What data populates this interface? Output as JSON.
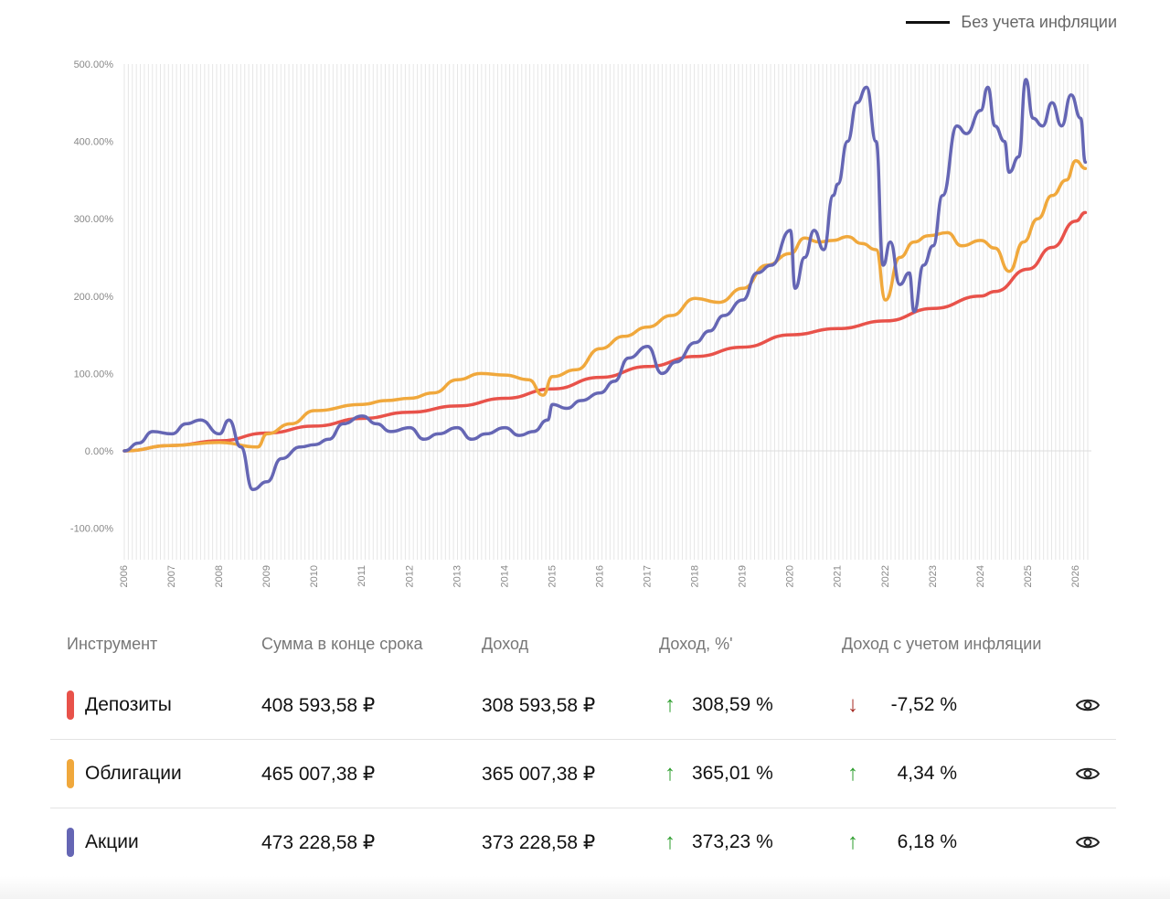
{
  "legend": {
    "label": "Без учета инфляции",
    "color": "#111111"
  },
  "chart_data": {
    "type": "line",
    "x_ticks": [
      "2006",
      "2007",
      "2008",
      "2009",
      "2010",
      "2011",
      "2012",
      "2013",
      "2014",
      "2015",
      "2016",
      "2017",
      "2018",
      "2019",
      "2020",
      "2021",
      "2022",
      "2023",
      "2024",
      "2025",
      "2026"
    ],
    "y_ticks": [
      "500.00%",
      "400.00%",
      "300.00%",
      "200.00%",
      "100.00%",
      "0.00%",
      "-100.00%"
    ],
    "xlim": [
      2006.0,
      2026.25
    ],
    "ylim": [
      -130,
      500
    ],
    "grid": "vertical",
    "series": [
      {
        "name": "Депозиты",
        "color": "#e8524a",
        "points": [
          [
            2006.0,
            0
          ],
          [
            2007.0,
            7
          ],
          [
            2008.0,
            13
          ],
          [
            2009.0,
            23
          ],
          [
            2010.0,
            32
          ],
          [
            2011.0,
            42
          ],
          [
            2012.0,
            50
          ],
          [
            2013.0,
            58
          ],
          [
            2014.0,
            68
          ],
          [
            2015.0,
            80
          ],
          [
            2016.0,
            95
          ],
          [
            2017.0,
            109
          ],
          [
            2018.0,
            122
          ],
          [
            2019.0,
            134
          ],
          [
            2020.0,
            150
          ],
          [
            2021.0,
            158
          ],
          [
            2022.0,
            168
          ],
          [
            2023.0,
            184
          ],
          [
            2024.0,
            200
          ],
          [
            2024.3,
            206
          ],
          [
            2025.0,
            235
          ],
          [
            2025.5,
            263
          ],
          [
            2026.0,
            297
          ],
          [
            2026.2,
            308
          ]
        ]
      },
      {
        "name": "Облигации",
        "color": "#f0a83c",
        "points": [
          [
            2006.0,
            0
          ],
          [
            2007.0,
            7
          ],
          [
            2008.0,
            11
          ],
          [
            2008.8,
            5
          ],
          [
            2009.0,
            22
          ],
          [
            2009.5,
            35
          ],
          [
            2010.0,
            52
          ],
          [
            2011.0,
            60
          ],
          [
            2011.5,
            65
          ],
          [
            2012.0,
            68
          ],
          [
            2012.5,
            75
          ],
          [
            2013.0,
            92
          ],
          [
            2013.5,
            100
          ],
          [
            2014.0,
            98
          ],
          [
            2014.5,
            92
          ],
          [
            2014.8,
            72
          ],
          [
            2015.0,
            96
          ],
          [
            2015.5,
            105
          ],
          [
            2016.0,
            132
          ],
          [
            2016.5,
            148
          ],
          [
            2017.0,
            160
          ],
          [
            2017.5,
            175
          ],
          [
            2018.0,
            197
          ],
          [
            2018.5,
            192
          ],
          [
            2019.0,
            210
          ],
          [
            2019.5,
            240
          ],
          [
            2020.0,
            255
          ],
          [
            2020.3,
            275
          ],
          [
            2020.6,
            270
          ],
          [
            2020.9,
            272
          ],
          [
            2021.2,
            277
          ],
          [
            2021.5,
            268
          ],
          [
            2021.8,
            260
          ],
          [
            2022.0,
            195
          ],
          [
            2022.3,
            250
          ],
          [
            2022.6,
            270
          ],
          [
            2022.9,
            278
          ],
          [
            2023.3,
            282
          ],
          [
            2023.6,
            265
          ],
          [
            2024.0,
            272
          ],
          [
            2024.3,
            262
          ],
          [
            2024.6,
            232
          ],
          [
            2024.9,
            270
          ],
          [
            2025.2,
            300
          ],
          [
            2025.5,
            330
          ],
          [
            2025.8,
            350
          ],
          [
            2026.0,
            375
          ],
          [
            2026.2,
            365
          ]
        ]
      },
      {
        "name": "Акции",
        "color": "#6566b4",
        "points": [
          [
            2006.0,
            0
          ],
          [
            2006.3,
            10
          ],
          [
            2006.6,
            25
          ],
          [
            2007.0,
            22
          ],
          [
            2007.3,
            35
          ],
          [
            2007.6,
            40
          ],
          [
            2008.0,
            22
          ],
          [
            2008.2,
            40
          ],
          [
            2008.45,
            5
          ],
          [
            2008.7,
            -50
          ],
          [
            2009.0,
            -40
          ],
          [
            2009.3,
            -10
          ],
          [
            2009.7,
            5
          ],
          [
            2010.0,
            8
          ],
          [
            2010.3,
            15
          ],
          [
            2010.6,
            35
          ],
          [
            2011.0,
            45
          ],
          [
            2011.3,
            35
          ],
          [
            2011.6,
            25
          ],
          [
            2012.0,
            30
          ],
          [
            2012.3,
            15
          ],
          [
            2012.6,
            22
          ],
          [
            2013.0,
            30
          ],
          [
            2013.3,
            15
          ],
          [
            2013.6,
            22
          ],
          [
            2014.0,
            30
          ],
          [
            2014.3,
            20
          ],
          [
            2014.6,
            25
          ],
          [
            2014.9,
            40
          ],
          [
            2015.0,
            60
          ],
          [
            2015.3,
            55
          ],
          [
            2015.6,
            65
          ],
          [
            2016.0,
            75
          ],
          [
            2016.3,
            90
          ],
          [
            2016.6,
            120
          ],
          [
            2017.0,
            135
          ],
          [
            2017.3,
            100
          ],
          [
            2017.6,
            115
          ],
          [
            2018.0,
            140
          ],
          [
            2018.3,
            155
          ],
          [
            2018.6,
            175
          ],
          [
            2019.0,
            195
          ],
          [
            2019.3,
            230
          ],
          [
            2019.6,
            240
          ],
          [
            2020.0,
            285
          ],
          [
            2020.1,
            210
          ],
          [
            2020.3,
            250
          ],
          [
            2020.5,
            285
          ],
          [
            2020.7,
            260
          ],
          [
            2020.9,
            330
          ],
          [
            2021.0,
            345
          ],
          [
            2021.2,
            400
          ],
          [
            2021.4,
            450
          ],
          [
            2021.6,
            470
          ],
          [
            2021.8,
            400
          ],
          [
            2021.95,
            240
          ],
          [
            2022.1,
            270
          ],
          [
            2022.3,
            215
          ],
          [
            2022.5,
            230
          ],
          [
            2022.6,
            180
          ],
          [
            2022.8,
            240
          ],
          [
            2023.0,
            265
          ],
          [
            2023.2,
            330
          ],
          [
            2023.5,
            420
          ],
          [
            2023.7,
            410
          ],
          [
            2024.0,
            440
          ],
          [
            2024.15,
            470
          ],
          [
            2024.3,
            420
          ],
          [
            2024.5,
            400
          ],
          [
            2024.6,
            360
          ],
          [
            2024.8,
            380
          ],
          [
            2024.95,
            480
          ],
          [
            2025.1,
            430
          ],
          [
            2025.3,
            420
          ],
          [
            2025.5,
            450
          ],
          [
            2025.7,
            420
          ],
          [
            2025.9,
            460
          ],
          [
            2026.1,
            430
          ],
          [
            2026.2,
            373
          ]
        ]
      }
    ]
  },
  "table": {
    "headers": {
      "instrument": "Инструмент",
      "sum": "Сумма в конце срока",
      "income": "Доход",
      "income_pct": "Доход, %'",
      "real_income": "Доход с учетом инфляции"
    },
    "rows": [
      {
        "name": "Депозиты",
        "color": "#e8524a",
        "sum": "408 593,58 ₽",
        "income": "308 593,58 ₽",
        "income_pct": "308,59 %",
        "pct_arrow": "↑",
        "pct_arrow_color": "#2e9e2e",
        "real": "-7,52 %",
        "real_arrow": "↓",
        "real_arrow_color": "#a52a22"
      },
      {
        "name": "Облигации",
        "color": "#f0a83c",
        "sum": "465 007,38 ₽",
        "income": "365 007,38 ₽",
        "income_pct": "365,01 %",
        "pct_arrow": "↑",
        "pct_arrow_color": "#2e9e2e",
        "real": "4,34 %",
        "real_arrow": "↑",
        "real_arrow_color": "#2e9e2e"
      },
      {
        "name": "Акции",
        "color": "#6566b4",
        "sum": "473 228,58 ₽",
        "income": "373 228,58 ₽",
        "income_pct": "373,23 %",
        "pct_arrow": "↑",
        "pct_arrow_color": "#2e9e2e",
        "real": "6,18 %",
        "real_arrow": "↑",
        "real_arrow_color": "#2e9e2e"
      }
    ]
  }
}
